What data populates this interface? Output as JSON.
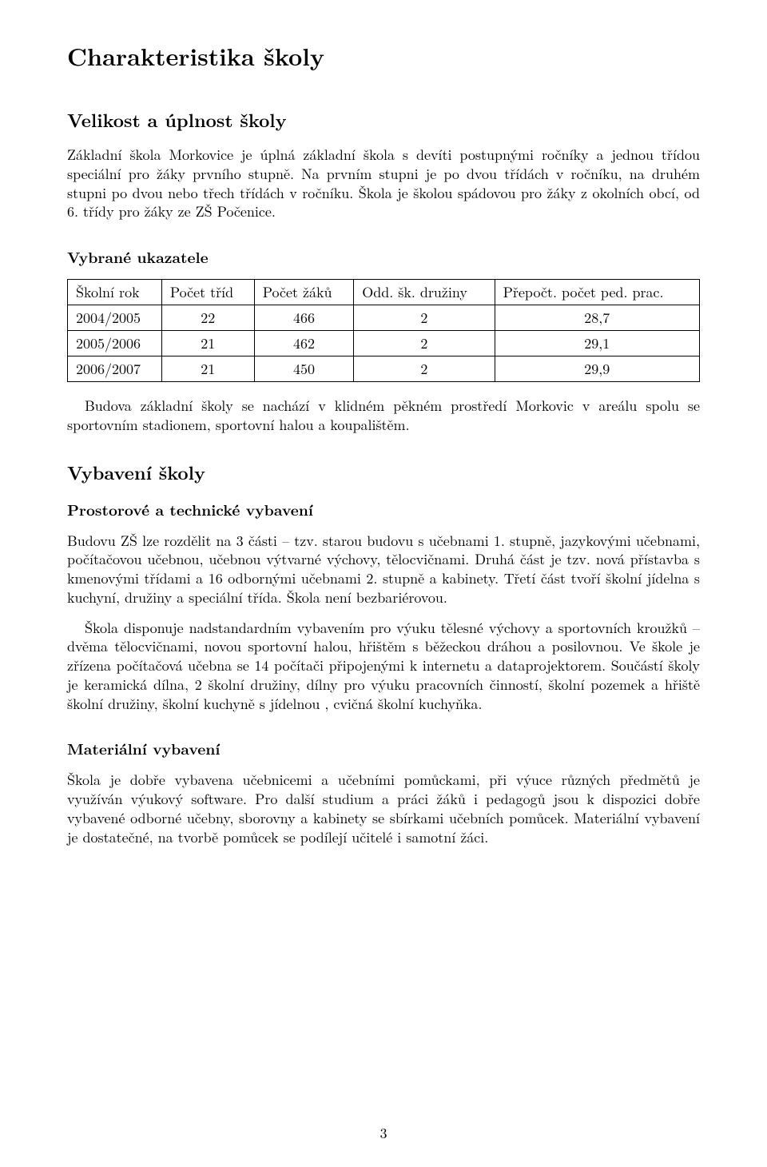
{
  "page": {
    "number": "3",
    "background_color": "#ffffff",
    "text_color": "#000000"
  },
  "section": {
    "title": "Charakteristika školy"
  },
  "sub1": {
    "title": "Velikost a úplnost školy",
    "para1": "Základní škola Morkovice je úplná základní škola s devíti postupnými ročníky a jednou třídou speciální pro žáky prvního stupně. Na prvním stupni je po dvou třídách v ročníku, na druhém stupni po dvou nebo třech třídách v ročníku. Škola je školou spádovou pro žáky z okolních obcí, od 6. třídy pro žáky ze ZŠ Počenice."
  },
  "indicators": {
    "title": "Vybrané ukazatele",
    "table": {
      "type": "table",
      "border_color": "#000000",
      "columns": [
        {
          "label": "Školní rok"
        },
        {
          "label": "Počet tříd"
        },
        {
          "label": "Počet žáků"
        },
        {
          "label": "Odd. šk. družiny"
        },
        {
          "label": "Přepočt. počet ped. prac."
        }
      ],
      "rows": [
        {
          "c0": "2004/2005",
          "c1": "22",
          "c2": "466",
          "c3": "2",
          "c4": "28,7"
        },
        {
          "c0": "2005/2006",
          "c1": "21",
          "c2": "462",
          "c3": "2",
          "c4": "29,1"
        },
        {
          "c0": "2006/2007",
          "c1": "21",
          "c2": "450",
          "c3": "2",
          "c4": "29,9"
        }
      ]
    },
    "para_after": "Budova základní školy se nachází v klidném pěkném prostředí Morkovic v areálu spolu se sportovním stadionem, sportovní halou a koupalištěm."
  },
  "sub2": {
    "title": "Vybavení školy",
    "subsub1": {
      "title": "Prostorové a technické vybavení",
      "para1": "Budovu ZŠ lze rozdělit na 3 části – tzv. starou budovu s učebnami 1. stupně, jazykovými učebnami, počítačovou učebnou, učebnou výtvarné výchovy, tělocvičnami. Druhá část je tzv. nová přístavba s kmenovými třídami a 16 odbornými učebnami 2. stupně a kabinety. Třetí část tvoří školní jídelna s kuchyní, družiny a speciální třída. Škola není bezbariérovou.",
      "para2": "Škola disponuje nadstandardním vybavením pro výuku tělesné výchovy a sportovních kroužků – dvěma tělocvičnami, novou sportovní halou, hřištěm s běžeckou dráhou a posilovnou. Ve škole je zřízena počítačová učebna se 14 počítači připojenými k internetu a dataprojektorem. Součástí školy je keramická dílna, 2 školní družiny, dílny pro výuku pracovních činností, školní pozemek a hřiště školní družiny, školní kuchyně s jídelnou , cvičná školní kuchyňka."
    },
    "subsub2": {
      "title": "Materiální vybavení",
      "para1": "Škola je dobře vybavena učebnicemi a učebními pomůckami, při výuce různých předmětů je využíván výukový software. Pro další studium a práci žáků i pedagogů jsou k dispozici dobře vybavené odborné učebny, sborovny a kabinety se sbírkami učebních pomůcek. Materiální vybavení je dostatečné, na tvorbě pomůcek se podílejí učitelé i samotní žáci."
    }
  }
}
